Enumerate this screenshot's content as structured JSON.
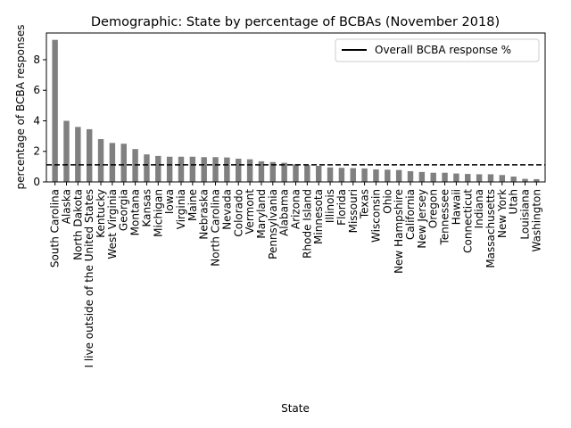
{
  "chart_data": {
    "type": "bar",
    "title": "Demographic: State by percentage of BCBAs (November 2018)",
    "xlabel": "State",
    "ylabel": "percentage of BCBA responses",
    "ylim": [
      0,
      9.75
    ],
    "yticks": [
      0,
      2,
      4,
      6,
      8
    ],
    "bar_color": "#808080",
    "reference_line": {
      "value": 1.12,
      "label": "Overall BCBA response %",
      "style": "dashed",
      "color": "#000000"
    },
    "legend": {
      "position": "top-right",
      "entries": [
        "Overall BCBA response %"
      ]
    },
    "grid": false,
    "categories": [
      "South Carolina",
      "Alaska",
      "North Dakota",
      "I live outside of the United States",
      "Kentucky",
      "West Virginia",
      "Georgia",
      "Montana",
      "Kansas",
      "Michigan",
      "Iowa",
      "Virginia",
      "Maine",
      "Nebraska",
      "North Carolina",
      "Nevada",
      "Colorado",
      "Vermont",
      "Maryland",
      "Pennsylvania",
      "Alabama",
      "Arizona",
      "Rhode Island",
      "Minnesota",
      "Illinois",
      "Florida",
      "Missouri",
      "Texas",
      "Wisconsin",
      "Ohio",
      "New Hampshire",
      "California",
      "New Jersey",
      "Oregon",
      "Tennessee",
      "Hawaii",
      "Connecticut",
      "Indiana",
      "Massachusetts",
      "New York",
      "Utah",
      "Louisiana",
      "Washington"
    ],
    "values": [
      9.3,
      4.0,
      3.6,
      3.45,
      2.8,
      2.55,
      2.5,
      2.15,
      1.8,
      1.7,
      1.65,
      1.65,
      1.65,
      1.62,
      1.62,
      1.6,
      1.52,
      1.48,
      1.35,
      1.3,
      1.25,
      1.15,
      1.1,
      1.05,
      0.95,
      0.92,
      0.9,
      0.88,
      0.82,
      0.8,
      0.78,
      0.7,
      0.65,
      0.6,
      0.6,
      0.55,
      0.52,
      0.5,
      0.5,
      0.45,
      0.35,
      0.2,
      0.18
    ]
  }
}
